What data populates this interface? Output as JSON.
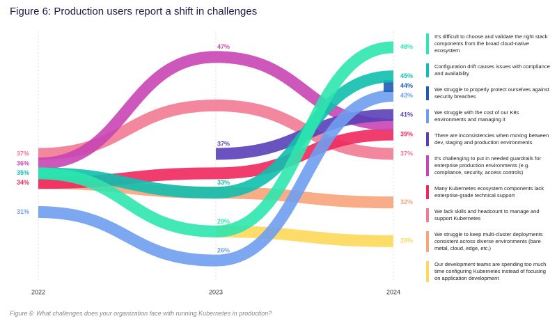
{
  "chart_data": {
    "type": "line",
    "title": "Figure 6: Production users report a shift in challenges",
    "caption": "Figure 6: What challenges does your organization face with running Kubernetes in production?",
    "categories": [
      "2022",
      "2023",
      "2024"
    ],
    "ylim": [
      24,
      50
    ],
    "series": [
      {
        "name": "It's difficult to choose and validate the right stack components from the broad cloud-native ecosystem",
        "color": "#2ee6ae",
        "values": [
          35,
          29,
          48
        ],
        "value_labels": [
          null,
          "29%",
          "48%"
        ]
      },
      {
        "name": "Configuration drift causes issues with compliance and availability",
        "color": "#10bfae",
        "values": [
          35,
          33,
          45
        ],
        "value_labels": [
          "35%",
          "33%",
          "45%"
        ]
      },
      {
        "name": "We struggle to properly protect ourselves against security breaches",
        "color": "#1f5db5",
        "values": [
          null,
          null,
          44
        ],
        "value_labels": [
          null,
          null,
          "44%"
        ]
      },
      {
        "name": "We struggle with the cost of our K8s environments and managing it",
        "color": "#6f9ef0",
        "values": [
          31,
          26,
          43
        ],
        "value_labels": [
          "31%",
          "26%",
          "43%"
        ]
      },
      {
        "name": "There are inconsistencies when moving between dev, staging and production environments",
        "color": "#5a3fb8",
        "values": [
          null,
          37,
          41
        ],
        "value_labels": [
          null,
          "37%",
          "41%"
        ]
      },
      {
        "name": "It's challenging to put in needed guardrails for enterprise production environments (e.g. compliance, security, access controls)",
        "color": "#c845b4",
        "values": [
          36,
          47,
          40
        ],
        "value_labels": [
          "36%",
          "47%",
          null
        ]
      },
      {
        "name": "Many Kubernetes ecosystem components lack enterprise-grade technical support",
        "color": "#f0285e",
        "values": [
          34,
          35,
          39
        ],
        "value_labels": [
          "34%",
          null,
          "39%"
        ]
      },
      {
        "name": "We lack skills and headcount to manage and support Kubernetes",
        "color": "#f27a92",
        "values": [
          37,
          42,
          37
        ],
        "value_labels": [
          "37%",
          null,
          "37%"
        ]
      },
      {
        "name": "We struggle to keep multi-cluster deployments consistent across diverse environments (bare metal, cloud, edge, etc.)",
        "color": "#f7a37b",
        "values": [
          34,
          33,
          32
        ],
        "value_labels": [
          null,
          null,
          "32%"
        ]
      },
      {
        "name": "Our development teams are spending too much time configuring Kubernetes instead of focusing on application development",
        "color": "#fdd85a",
        "values": [
          null,
          29,
          28
        ],
        "value_labels": [
          null,
          null,
          "28%"
        ]
      }
    ]
  }
}
